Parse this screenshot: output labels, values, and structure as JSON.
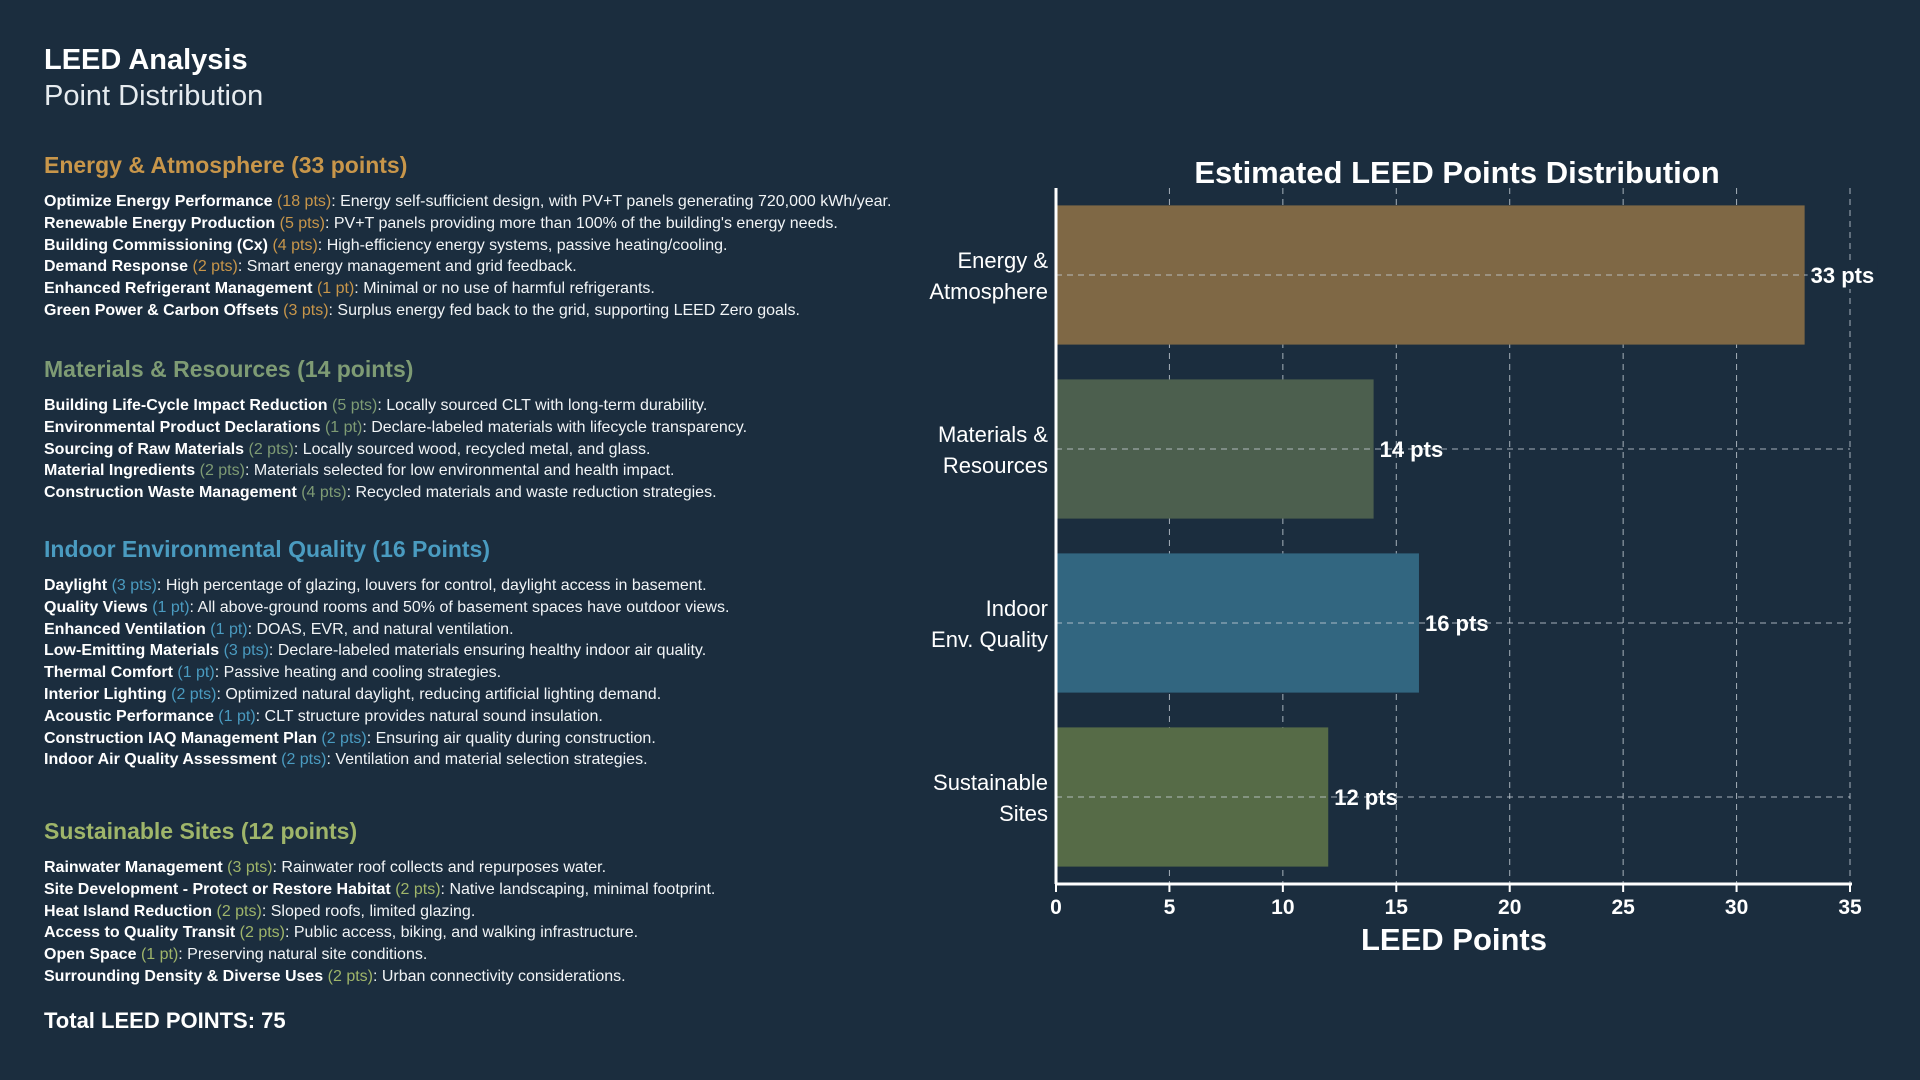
{
  "header": {
    "title": "LEED Analysis",
    "subtitle": "Point Distribution"
  },
  "colors": {
    "background": "#1b2d3e",
    "energy": "#c8964a",
    "materials": "#7e9b74",
    "indoor": "#4a9bc0",
    "sites": "#9fb56a"
  },
  "sections": [
    {
      "heading": "Energy & Atmosphere (33 points)",
      "color": "#c8964a",
      "items": [
        {
          "name": "Optimize Energy Performance",
          "pts": "(18 pts)",
          "desc": ": Energy self-sufficient design, with PV+T panels generating 720,000 kWh/year."
        },
        {
          "name": "Renewable Energy Production",
          "pts": "(5 pts)",
          "desc": ": PV+T panels providing more than 100% of the building's energy needs."
        },
        {
          "name": "Building Commissioning (Cx)",
          "pts": "(4 pts)",
          "desc": ": High-efficiency energy systems, passive heating/cooling."
        },
        {
          "name": "Demand Response",
          "pts": "(2 pts)",
          "desc": ": Smart energy management and grid feedback."
        },
        {
          "name": "Enhanced Refrigerant Management",
          "pts": "(1 pt)",
          "desc": ": Minimal or no use of harmful refrigerants."
        },
        {
          "name": "Green Power & Carbon Offsets",
          "pts": "(3 pts)",
          "desc": ": Surplus energy fed back to the grid, supporting LEED Zero goals."
        }
      ]
    },
    {
      "heading": "Materials & Resources (14 points)",
      "color": "#7e9b74",
      "items": [
        {
          "name": "Building Life-Cycle Impact Reduction",
          "pts": "(5 pts)",
          "desc": ": Locally sourced CLT with long-term durability."
        },
        {
          "name": "Environmental Product Declarations",
          "pts": "(1 pt)",
          "desc": ": Declare-labeled materials with lifecycle transparency."
        },
        {
          "name": "Sourcing of Raw Materials",
          "pts": "(2 pts)",
          "desc": ": Locally sourced wood, recycled metal, and glass."
        },
        {
          "name": "Material Ingredients",
          "pts": "(2 pts)",
          "desc": ": Materials selected for low environmental and health impact."
        },
        {
          "name": "Construction Waste Management",
          "pts": "(4 pts)",
          "desc": ": Recycled materials and waste reduction strategies."
        }
      ]
    },
    {
      "heading": "Indoor Environmental Quality (16 Points)",
      "color": "#4a9bc0",
      "items": [
        {
          "name": "Daylight",
          "pts": "(3 pts)",
          "desc": ": High percentage of glazing, louvers for control, daylight access in basement."
        },
        {
          "name": "Quality Views",
          "pts": "(1 pt)",
          "desc": ": All above-ground rooms and 50% of basement spaces have outdoor views."
        },
        {
          "name": "Enhanced Ventilation",
          "pts": "(1 pt)",
          "desc": ": DOAS, EVR, and natural ventilation."
        },
        {
          "name": "Low-Emitting Materials",
          "pts": "(3 pts)",
          "desc": ": Declare-labeled materials ensuring healthy indoor air quality."
        },
        {
          "name": "Thermal Comfort",
          "pts": "(1 pt)",
          "desc": ": Passive heating and cooling strategies."
        },
        {
          "name": "Interior Lighting",
          "pts": "(2 pts)",
          "desc": ": Optimized natural daylight, reducing artificial lighting demand."
        },
        {
          "name": "Acoustic Performance",
          "pts": "(1 pt)",
          "desc": ": CLT structure provides natural sound insulation."
        },
        {
          "name": "Construction IAQ Management Plan",
          "pts": "(2 pts)",
          "desc": ": Ensuring air quality during construction."
        },
        {
          "name": "Indoor Air Quality Assessment",
          "pts": "(2 pts)",
          "desc": ": Ventilation and material selection strategies."
        }
      ]
    },
    {
      "heading": "Sustainable Sites (12 points)",
      "color": "#9fb56a",
      "items": [
        {
          "name": "Rainwater Management",
          "pts": "(3 pts)",
          "desc": ": Rainwater roof collects and repurposes water."
        },
        {
          "name": "Site Development - Protect or Restore Habitat",
          "pts": "(2 pts)",
          "desc": ": Native landscaping, minimal footprint."
        },
        {
          "name": "Heat Island Reduction",
          "pts": "(2 pts)",
          "desc": ": Sloped roofs, limited glazing."
        },
        {
          "name": "Access to Quality Transit",
          "pts": "(2 pts)",
          "desc": ": Public access, biking, and walking infrastructure."
        },
        {
          "name": "Open Space",
          "pts": "(1 pt)",
          "desc": ": Preserving natural site conditions."
        },
        {
          "name": "Surrounding Density & Diverse Uses",
          "pts": "(2 pts)",
          "desc": ": Urban connectivity considerations."
        }
      ]
    }
  ],
  "total": "Total LEED POINTS: 75",
  "chart_data": {
    "type": "bar",
    "orientation": "horizontal",
    "title": "Estimated LEED Points Distribution",
    "xlabel": "LEED Points",
    "ylabel": "",
    "categories": [
      [
        "Energy &",
        "Atmosphere"
      ],
      [
        "Materials &",
        "Resources"
      ],
      [
        "Indoor",
        "Env. Quality"
      ],
      [
        "Sustainable",
        "Sites"
      ]
    ],
    "values": [
      33,
      14,
      16,
      12
    ],
    "value_labels": [
      "33 pts",
      "14 pts",
      "16 pts",
      "12 pts"
    ],
    "bar_colors": [
      "#7f6845",
      "#4c5f4e",
      "#326680",
      "#566b47"
    ],
    "xlim": [
      0,
      35
    ],
    "xticks": [
      0,
      5,
      10,
      15,
      20,
      25,
      30,
      35
    ],
    "grid": true
  }
}
